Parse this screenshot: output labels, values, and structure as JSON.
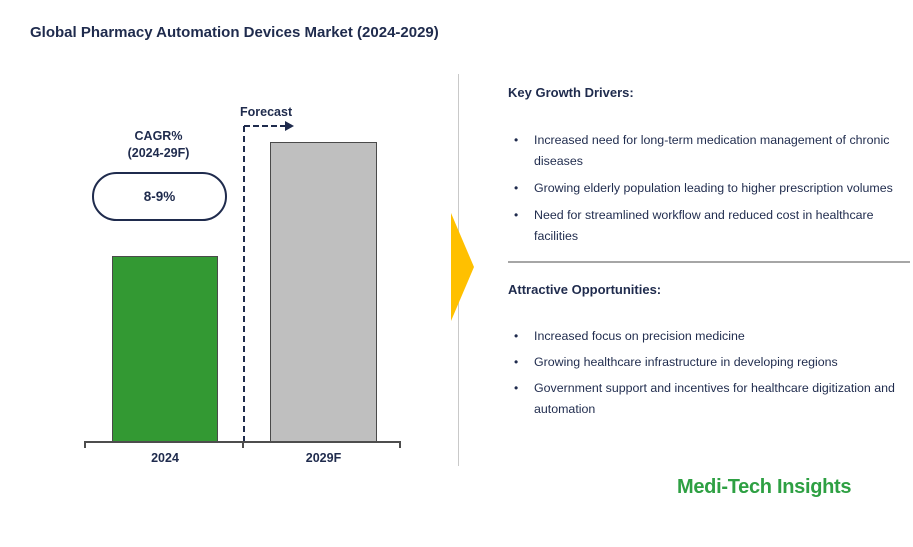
{
  "title": "Global Pharmacy Automation Devices Market (2024-2029)",
  "colors": {
    "navy": "#1F2B4D",
    "bar_green": "#339933",
    "bar_gray": "#BFBFBF",
    "bar_border": "#4A4A4A",
    "accent_yellow": "#FFC000",
    "logo_green": "#2EA043",
    "divider_gray": "#A6A6A6"
  },
  "chart": {
    "forecast_label": "Forecast",
    "cagr_label_line1": "CAGR%",
    "cagr_label_line2": "(2024-29F)",
    "cagr_value": "8-9%"
  },
  "chart_data": {
    "type": "bar",
    "title": "Global Pharmacy Automation Devices Market (2024-2029)",
    "categories": [
      "2024",
      "2029F"
    ],
    "values": [
      62,
      100
    ],
    "value_scale": "relative height (no numeric value axis shown)",
    "bar_colors": [
      "#339933",
      "#BFBFBF"
    ],
    "xlabel": "",
    "ylabel": "",
    "grid": false,
    "legend": false,
    "annotations": [
      "CAGR% (2024-29F): 8-9%",
      "Forecast (dashed marker before 2029F bar)"
    ]
  },
  "right_panel": {
    "sections": [
      {
        "heading": "Key Growth Drivers:",
        "bullets": [
          "Increased need for long-term medication management of chronic diseases",
          "Growing elderly population leading to higher prescription volumes",
          "Need for streamlined workflow and reduced cost in healthcare facilities"
        ]
      },
      {
        "heading": "Attractive Opportunities:",
        "bullets": [
          "Increased focus on precision medicine",
          "Growing healthcare infrastructure in developing regions",
          "Government support and incentives for healthcare digitization and automation"
        ]
      }
    ]
  },
  "logo": {
    "text": "Medi-Tech Insights"
  }
}
